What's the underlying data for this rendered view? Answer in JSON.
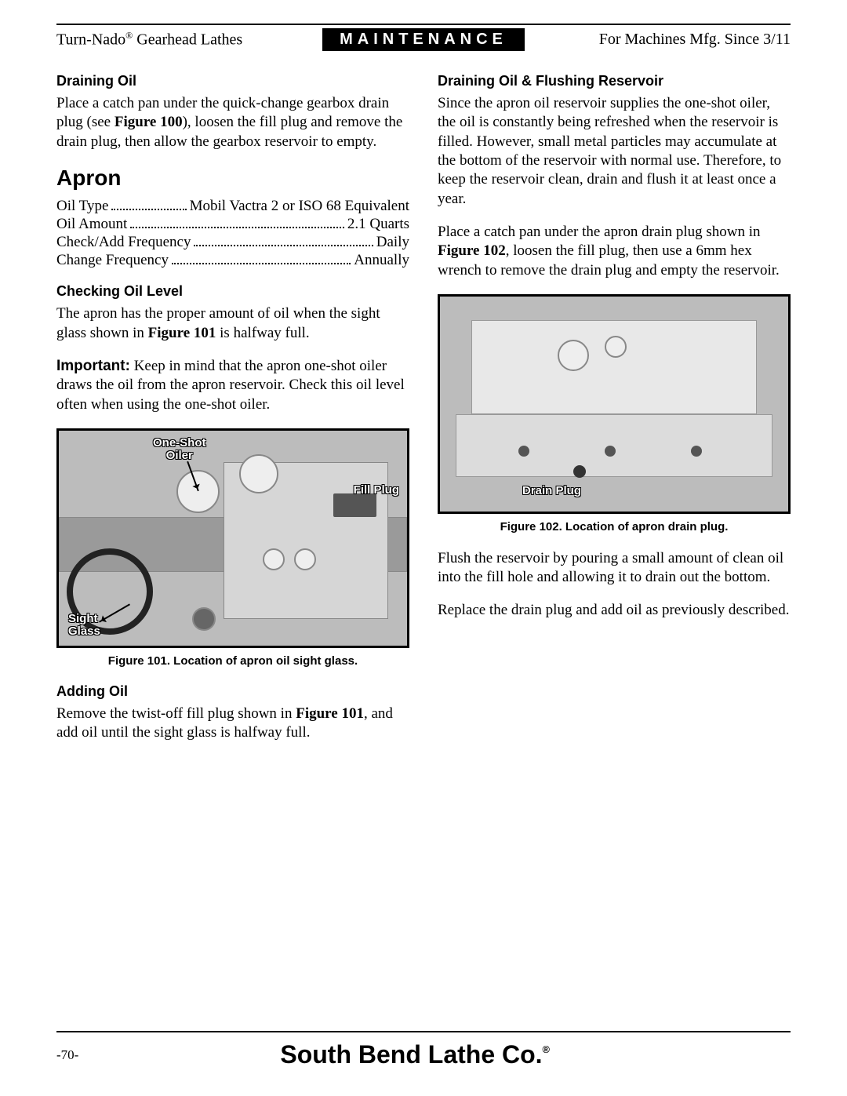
{
  "header": {
    "left_product": "Turn-Nado",
    "left_suffix": " Gearhead Lathes",
    "center": "MAINTENANCE",
    "right": "For Machines Mfg. Since 3/11"
  },
  "left_col": {
    "h_draining": "Draining Oil",
    "p_draining_a": "Place a catch pan under the quick-change gearbox drain plug (see ",
    "p_draining_fig": "Figure 100",
    "p_draining_b": "), loosen the fill plug and remove the drain plug, then allow the gearbox reservoir to empty.",
    "h_apron": "Apron",
    "specs": [
      {
        "label": "Oil Type",
        "value": "Mobil Vactra 2 or ISO 68 Equivalent"
      },
      {
        "label": "Oil Amount",
        "value": "2.1 Quarts"
      },
      {
        "label": "Check/Add Frequency",
        "value": "Daily"
      },
      {
        "label": "Change Frequency",
        "value": "Annually"
      }
    ],
    "h_check": "Checking Oil Level",
    "p_check_a": "The apron has the proper amount of oil when the sight glass shown in ",
    "p_check_fig": "Figure 101",
    "p_check_b": " is halfway full.",
    "p_important_lead": "Important:",
    "p_important_body": " Keep in mind that the apron one-shot oiler draws the oil from the apron reservoir. Check this oil level often when using the one-shot oiler.",
    "fig101": {
      "callout_oiler": "One-Shot\nOiler",
      "callout_fill": "Fill Plug",
      "callout_sight": "Sight\nGlass",
      "caption": "Figure 101. Location of apron oil sight glass."
    },
    "h_adding": "Adding Oil",
    "p_adding_a": "Remove the twist-off fill plug shown in ",
    "p_adding_fig": "Figure 101",
    "p_adding_b": ", and add oil until the sight glass is halfway full."
  },
  "right_col": {
    "h_flush": "Draining Oil & Flushing Reservoir",
    "p_flush1": "Since the apron oil reservoir supplies the one-shot oiler, the oil is constantly being refreshed when the reservoir is filled. However, small metal particles may accumulate at the bottom of the reservoir with normal use. Therefore, to keep the reservoir clean, drain and flush it at least once a year.",
    "p_flush2a": "Place a catch pan under the apron drain plug shown in ",
    "p_flush2fig": "Figure 102",
    "p_flush2b": ", loosen the fill plug, then use a 6mm hex wrench to remove the drain plug and empty the reservoir.",
    "fig102": {
      "callout_drain": "Drain Plug",
      "caption": "Figure 102. Location of apron drain plug."
    },
    "p_flush3": "Flush the reservoir by pouring a small amount of clean oil into the fill hole and allowing it to drain out the bottom.",
    "p_flush4": "Replace the drain plug and add oil as previously described."
  },
  "footer": {
    "page": "-70-",
    "brand": "South Bend Lathe Co."
  }
}
